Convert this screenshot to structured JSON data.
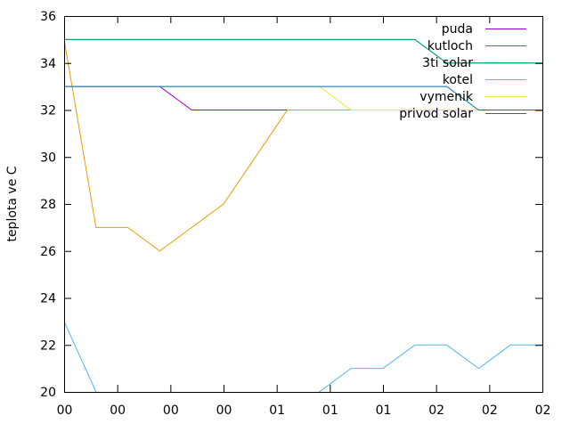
{
  "chart_data": {
    "type": "line",
    "ylabel": "teplota ve C",
    "xlabel": "",
    "ylim": [
      20,
      36
    ],
    "xlim": [
      0,
      15
    ],
    "x_tick_labels": [
      "00",
      "00",
      "00",
      "00",
      "01",
      "01",
      "01",
      "02",
      "02",
      "02"
    ],
    "y_ticks": [
      20,
      22,
      24,
      26,
      28,
      30,
      32,
      34,
      36
    ],
    "grid": false,
    "legend_position": "top-right",
    "series": [
      {
        "name": "puda",
        "color": "#9400d3",
        "x": [
          0,
          2,
          3,
          4,
          5,
          6,
          7,
          8,
          9,
          10,
          11,
          12,
          13,
          14,
          15
        ],
        "y": [
          33,
          33,
          33,
          32,
          32,
          32,
          32,
          32,
          32,
          32,
          32,
          32,
          32,
          32,
          32
        ]
      },
      {
        "name": "kutloch",
        "color": "#009e73",
        "x": [
          0,
          2,
          3,
          4,
          5,
          6,
          7,
          8,
          9,
          10,
          11,
          12,
          13,
          14,
          15
        ],
        "y": [
          35,
          35,
          35,
          35,
          35,
          35,
          35,
          35,
          35,
          35,
          35,
          34,
          34,
          34,
          34
        ]
      },
      {
        "name": "3ti solar",
        "color": "#56b4e9",
        "x": [
          0,
          1,
          1.5
        ],
        "y": [
          23,
          20,
          18.5
        ]
      },
      {
        "name": "3ti solar",
        "color": "#56b4e9",
        "x": [
          7.5,
          8,
          9,
          10,
          11,
          12,
          13,
          14,
          15
        ],
        "y": [
          19,
          20,
          21,
          21,
          22,
          22,
          21,
          22,
          22
        ]
      },
      {
        "name": "kotel",
        "color": "#e69f00",
        "x": [
          0,
          1,
          2,
          3,
          4,
          5,
          6,
          7,
          8,
          9,
          10,
          11,
          12,
          13,
          14,
          15
        ],
        "y": [
          35,
          27,
          27,
          26,
          27,
          28,
          30,
          32,
          32,
          32,
          32,
          32,
          32,
          32,
          32,
          32
        ]
      },
      {
        "name": "vymenik",
        "color": "#f0e442",
        "x": [
          0,
          1,
          2,
          3,
          4,
          5,
          6,
          7,
          8,
          9,
          10,
          11,
          12,
          13,
          14,
          15
        ],
        "y": [
          33,
          33,
          33,
          33,
          33,
          33,
          33,
          33,
          33,
          32,
          32,
          32,
          32,
          32,
          32,
          32
        ]
      },
      {
        "name": "privod solar",
        "color": "#0072b2",
        "x": [
          0,
          1,
          2,
          3,
          4,
          5,
          6,
          7,
          8,
          9,
          10,
          11,
          12,
          13,
          14,
          15
        ],
        "y": [
          33,
          33,
          33,
          33,
          33,
          33,
          33,
          33,
          33,
          33,
          33,
          33,
          33,
          32,
          32,
          32
        ]
      },
      {
        "name": "3ti solar",
        "color": "#009e73",
        "x": [
          0,
          2,
          4,
          6,
          8,
          10,
          11,
          12,
          13,
          14,
          15
        ],
        "y": [
          35,
          35,
          35,
          35,
          35,
          35,
          35,
          34,
          34,
          34,
          34
        ]
      }
    ],
    "legend": [
      {
        "label": "puda",
        "color": "#9400d3"
      },
      {
        "label": "kutloch",
        "color": "#009e73"
      },
      {
        "label": "3ti solar",
        "color": "#009e73"
      },
      {
        "label": "kotel",
        "color": "#e69f00"
      },
      {
        "label": "vymenik",
        "color": "#f0e442"
      },
      {
        "label": "privod solar",
        "color": "#0072b2"
      }
    ]
  }
}
